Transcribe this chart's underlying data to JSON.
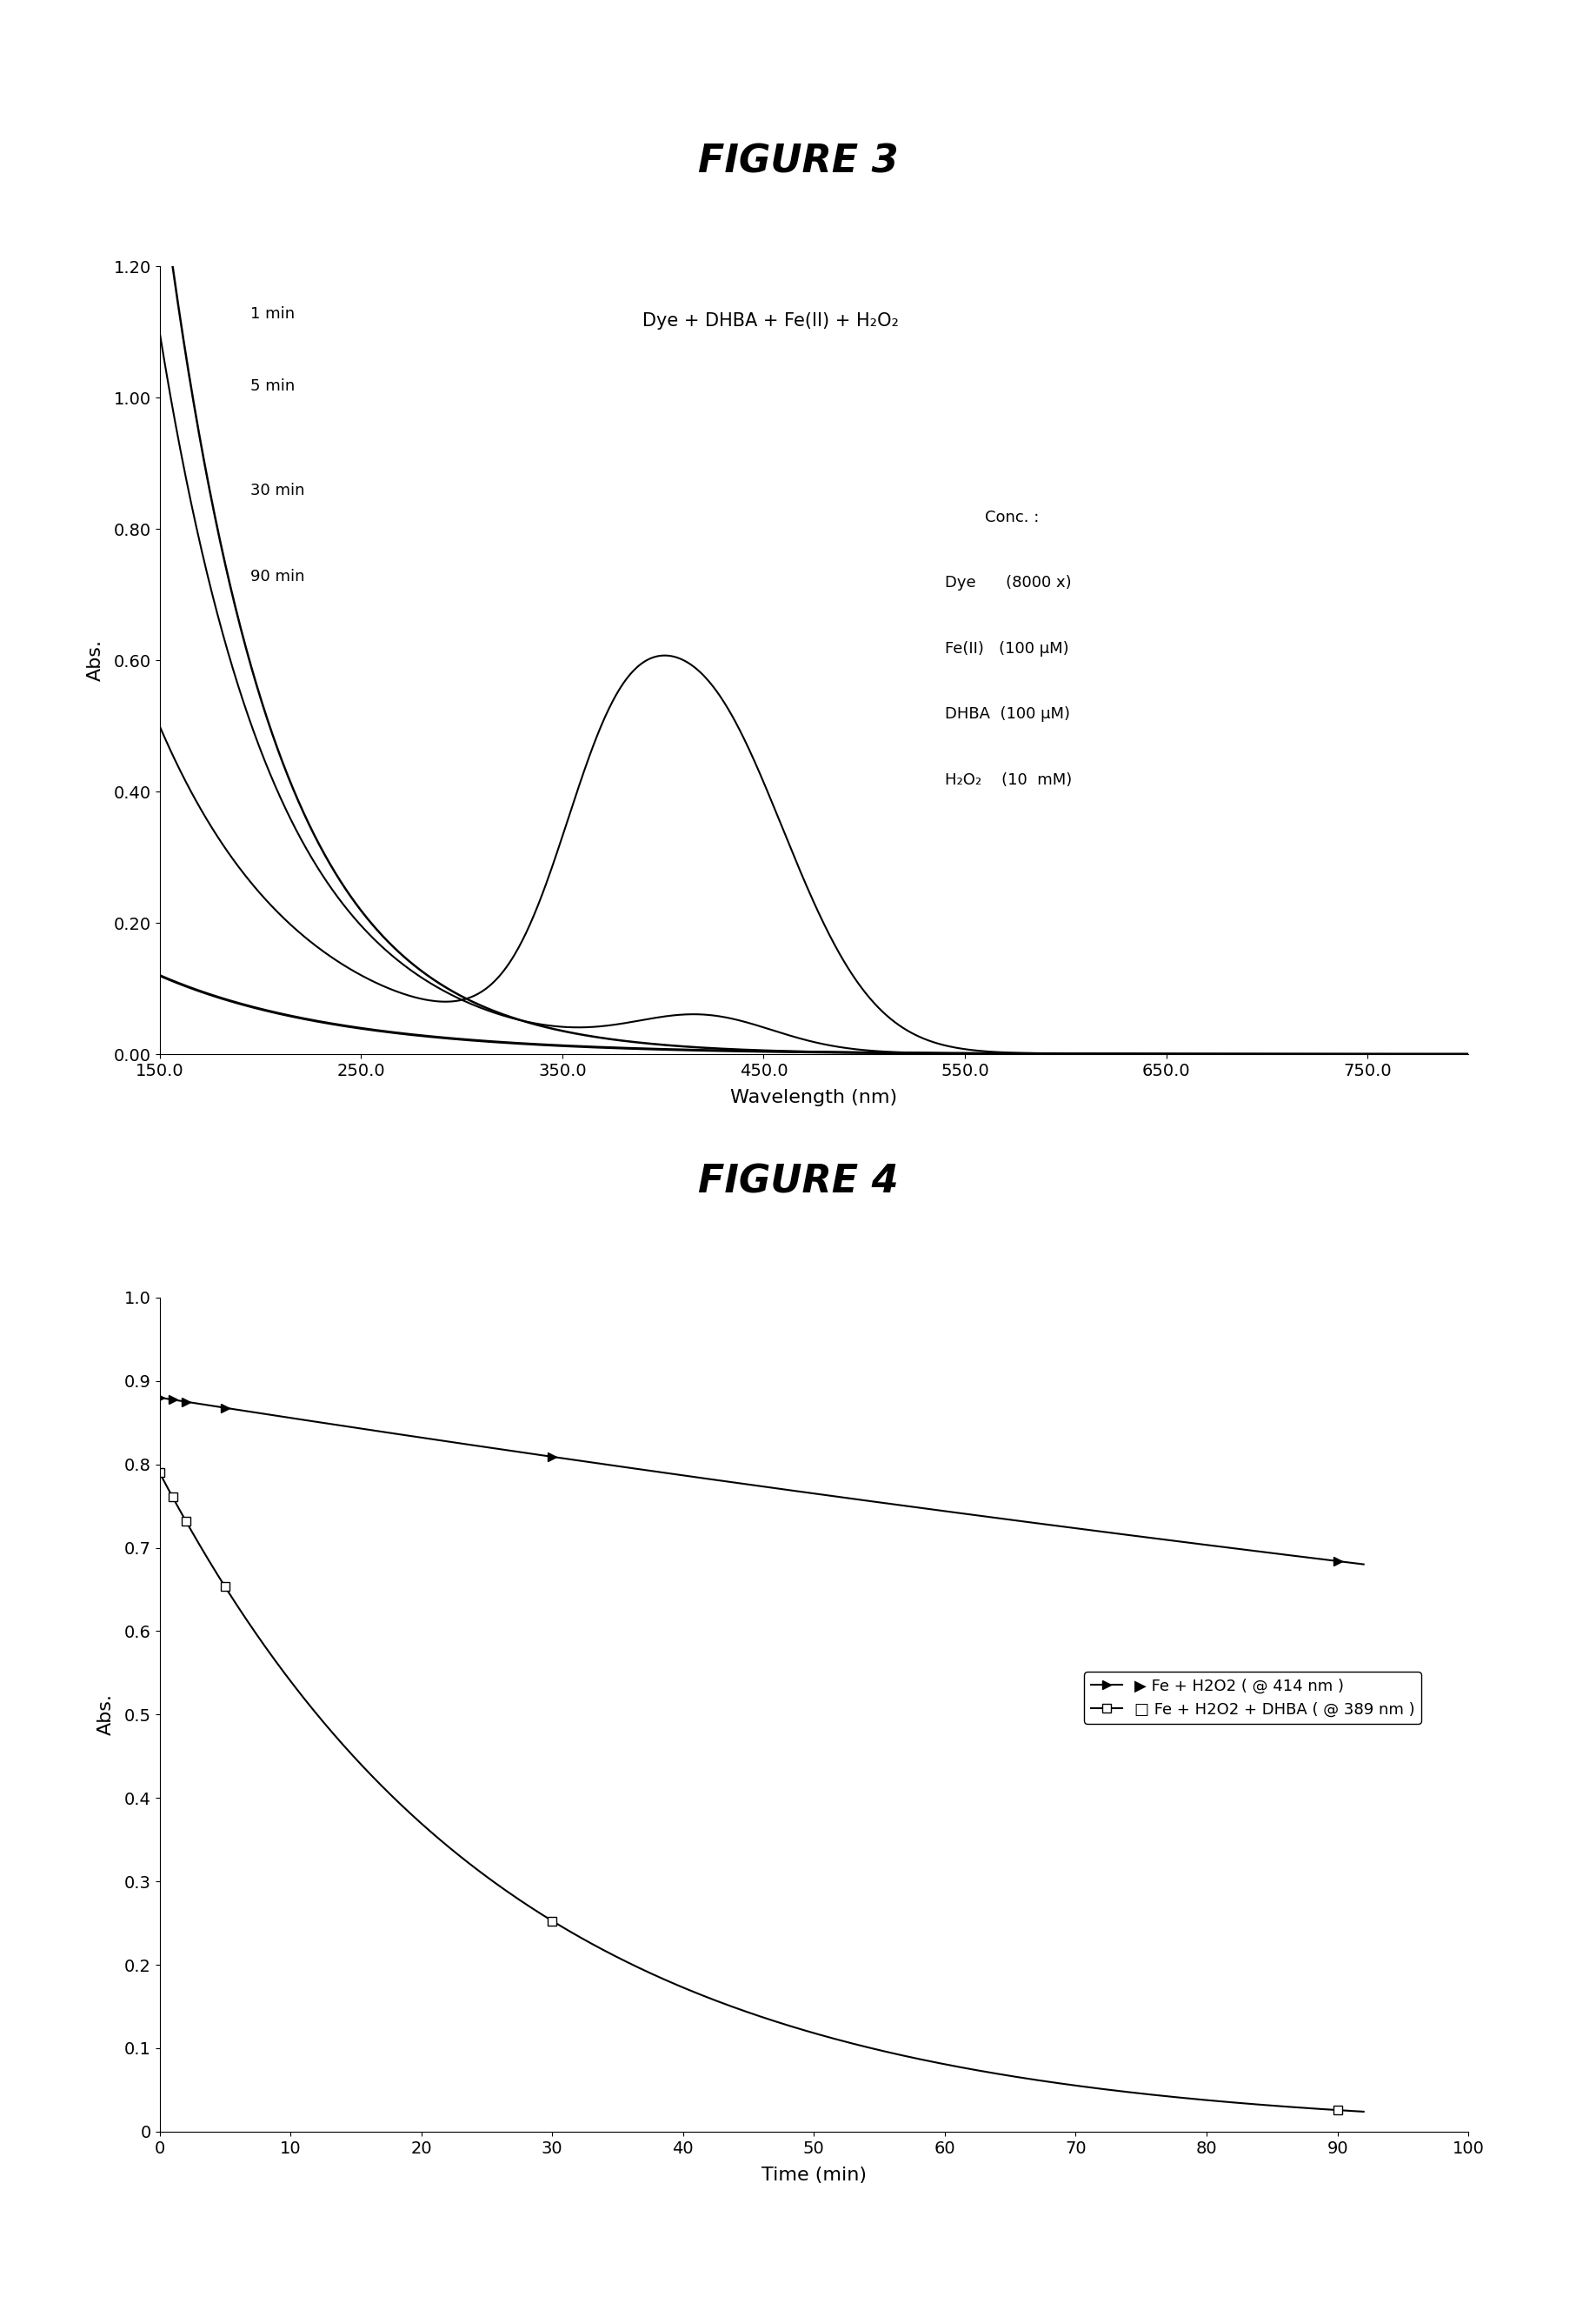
{
  "fig3_title": "FIGURE 3",
  "fig4_title": "FIGURE 4",
  "fig3_xlabel": "Wavelength (nm)",
  "fig3_ylabel": "Abs.",
  "fig4_xlabel": "Time (min)",
  "fig4_ylabel": "Abs.",
  "fig3_xlim": [
    150.0,
    800.0
  ],
  "fig3_ylim": [
    0.0,
    1.2
  ],
  "fig3_yticks": [
    0.0,
    0.2,
    0.4,
    0.6,
    0.8,
    1.0,
    1.2
  ],
  "fig3_xticks": [
    150.0,
    250.0,
    350.0,
    450.0,
    550.0,
    650.0,
    750.0
  ],
  "fig4_xlim": [
    0,
    100
  ],
  "fig4_ylim": [
    0,
    1.0
  ],
  "fig4_yticks": [
    0.0,
    0.1,
    0.2,
    0.3,
    0.4,
    0.5,
    0.6,
    0.7,
    0.8,
    0.9,
    1.0
  ],
  "fig4_xticks": [
    0,
    10,
    20,
    30,
    40,
    50,
    60,
    70,
    80,
    90,
    100
  ],
  "annotation_text": "Dye + DHBA + Fe(II) + H₂O₂",
  "labels_fig3": [
    "1 min",
    "5 min",
    "30 min",
    "90 min"
  ],
  "background_color": "#ffffff",
  "line_color": "#000000"
}
